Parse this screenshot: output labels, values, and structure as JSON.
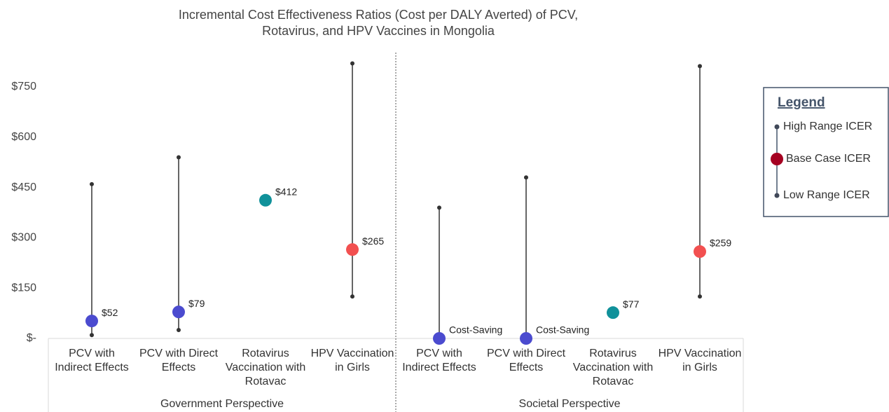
{
  "chart_data": {
    "type": "range",
    "title": "Incremental Cost Effectiveness Ratios (Cost per DALY Averted) of PCV, Rotavirus, and HPV Vaccines in Mongolia",
    "categories": [
      "PCV with Indirect Effects",
      "PCV with Direct Effects",
      "Rotavirus Vaccination with Rotavac",
      "HPV Vaccination in Girls",
      "PCV with Indirect Effects",
      "PCV with Direct Effects",
      "Rotavirus Vaccination with Rotavac",
      "HPV Vaccination in Girls"
    ],
    "groups": [
      "Government Perspective",
      "Societal Perspective"
    ],
    "series": [
      {
        "name": "High Range ICER",
        "color": "#404858",
        "values": [
          460,
          540,
          null,
          820,
          390,
          480,
          null,
          812
        ]
      },
      {
        "name": "Base Case ICER",
        "color": "#a50021",
        "values": [
          52,
          79,
          412,
          265,
          0,
          0,
          77,
          259
        ],
        "value_labels": [
          "$52",
          "$79",
          "$412",
          "$265",
          "Cost-Saving",
          "Cost-Saving",
          "$77",
          "$259"
        ],
        "colors": [
          "#4b4bcf",
          "#4b4bcf",
          "#10919a",
          "#f25050",
          "#4b4bcf",
          "#4b4bcf",
          "#10919a",
          "#f25050"
        ]
      },
      {
        "name": "Low Range ICER",
        "color": "#404858",
        "values": [
          10,
          25,
          null,
          125,
          null,
          null,
          null,
          125
        ]
      }
    ],
    "legend_title": "Legend",
    "ylim": [
      0,
      750
    ],
    "yticks": [
      {
        "value": 0,
        "label": "$-"
      },
      {
        "value": 150,
        "label": "$150"
      },
      {
        "value": 300,
        "label": "$300"
      },
      {
        "value": 450,
        "label": "$450"
      },
      {
        "value": 600,
        "label": "$600"
      },
      {
        "value": 750,
        "label": "$750"
      }
    ]
  }
}
